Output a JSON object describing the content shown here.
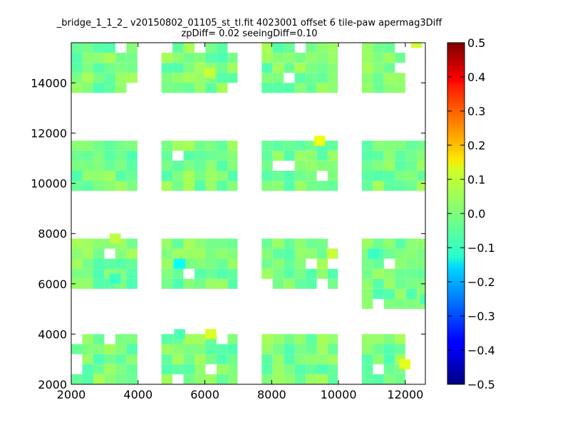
{
  "chart_data": {
    "type": "heatmap",
    "title": "_bridge_1_1_2_ v20150802_01105_st_tl.fit 4023001 offset 6 tile-paw apermag3Diff",
    "subtitle": "zpDiff= 0.02 seeingDiff=0.10",
    "xlabel": "",
    "ylabel": "",
    "xlim": [
      2000,
      12600
    ],
    "ylim": [
      2000,
      15600
    ],
    "x_ticks": [
      2000,
      4000,
      6000,
      8000,
      10000,
      12000
    ],
    "y_ticks": [
      2000,
      4000,
      6000,
      8000,
      10000,
      12000,
      14000
    ],
    "cell_width": 330,
    "cell_height": 400,
    "colormap": "jet",
    "colorbar": {
      "vmin": -0.5,
      "vmax": 0.5,
      "ticks": [
        -0.5,
        -0.4,
        -0.3,
        -0.2,
        -0.1,
        0.0,
        0.1,
        0.2,
        0.3,
        0.4,
        0.5
      ],
      "tick_labels": [
        "−0.5",
        "−0.4",
        "−0.3",
        "−0.2",
        "−0.1",
        "0.0",
        "0.1",
        "0.2",
        "0.3",
        "0.4",
        "0.5"
      ]
    },
    "tile_blocks": [
      {
        "x": [
          2000,
          3980
        ],
        "y": [
          13600,
          15600
        ],
        "seed": 11
      },
      {
        "x": [
          4700,
          6980
        ],
        "y": [
          13600,
          15600
        ],
        "seed": 12
      },
      {
        "x": [
          7700,
          9980
        ],
        "y": [
          13600,
          15600
        ],
        "seed": 13
      },
      {
        "x": [
          10700,
          12000
        ],
        "y": [
          13600,
          15600
        ],
        "seed": 14
      },
      {
        "x": [
          2000,
          3980
        ],
        "y": [
          9700,
          11700
        ],
        "seed": 21
      },
      {
        "x": [
          4700,
          6980
        ],
        "y": [
          9700,
          11700
        ],
        "seed": 22
      },
      {
        "x": [
          7700,
          9980
        ],
        "y": [
          9700,
          11700
        ],
        "seed": 23
      },
      {
        "x": [
          10700,
          12600
        ],
        "y": [
          9700,
          11700
        ],
        "seed": 24
      },
      {
        "x": [
          2000,
          3980
        ],
        "y": [
          5800,
          7800
        ],
        "seed": 31
      },
      {
        "x": [
          4700,
          6980
        ],
        "y": [
          5800,
          7800
        ],
        "seed": 32
      },
      {
        "x": [
          7700,
          9980
        ],
        "y": [
          5800,
          7800
        ],
        "seed": 33
      },
      {
        "x": [
          10700,
          12600
        ],
        "y": [
          5000,
          7800
        ],
        "seed": 34
      },
      {
        "x": [
          2000,
          3980
        ],
        "y": [
          2000,
          4000
        ],
        "seed": 41
      },
      {
        "x": [
          4700,
          6980
        ],
        "y": [
          2000,
          4000
        ],
        "seed": 42
      },
      {
        "x": [
          7700,
          9980
        ],
        "y": [
          2000,
          4000
        ],
        "seed": 43
      },
      {
        "x": [
          10700,
          12000
        ],
        "y": [
          2000,
          4000
        ],
        "seed": 44
      }
    ],
    "highlight_cells": [
      {
        "x": 12170,
        "y": 15400,
        "value": 0.08
      },
      {
        "x": 5980,
        "y": 14200,
        "value": 0.07
      },
      {
        "x": 9270,
        "y": 11500,
        "value": 0.11
      },
      {
        "x": 9640,
        "y": 7000,
        "value": 0.07
      },
      {
        "x": 3150,
        "y": 7600,
        "value": 0.06
      },
      {
        "x": 5080,
        "y": 6600,
        "value": -0.12
      },
      {
        "x": 3150,
        "y": 6000,
        "value": -0.07
      },
      {
        "x": 5080,
        "y": 3800,
        "value": -0.05
      },
      {
        "x": 6010,
        "y": 3800,
        "value": 0.09
      },
      {
        "x": 11820,
        "y": 2600,
        "value": 0.1
      },
      {
        "x": 10880,
        "y": 7000,
        "value": -0.07
      },
      {
        "x": 12450,
        "y": 5200,
        "value": -0.05
      }
    ]
  }
}
